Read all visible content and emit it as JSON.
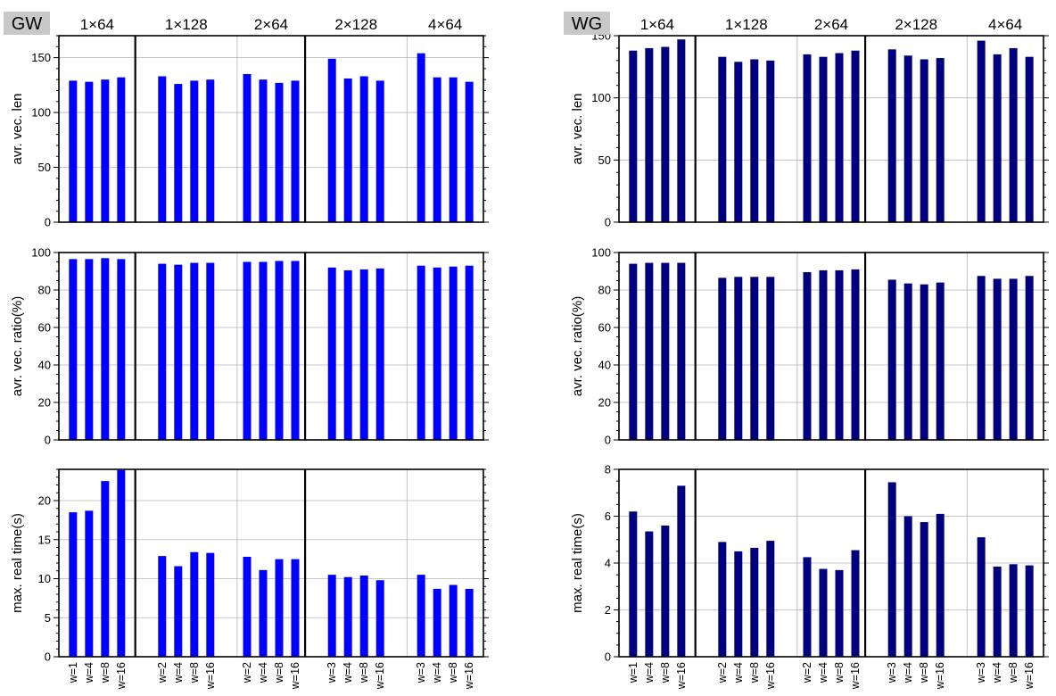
{
  "figure": {
    "config_labels": [
      "1×64",
      "1×128",
      "2×64",
      "2×128",
      "4×64"
    ],
    "worker_labels": [
      [
        "w=1",
        "w=4",
        "w=8",
        "w=16"
      ],
      [
        "w=2",
        "w=4",
        "w=8",
        "w=16"
      ],
      [
        "w=2",
        "w=4",
        "w=8",
        "w=16"
      ],
      [
        "w=3",
        "w=4",
        "w=8",
        "w=16"
      ],
      [
        "w=3",
        "w=4",
        "w=8",
        "w=16"
      ]
    ]
  },
  "chart_data": [
    {
      "type": "bar",
      "panel_tag": "GW",
      "color": "#0000ff",
      "ylabel": "avr. vec. len",
      "ylim": [
        0,
        170
      ],
      "yticks": [
        0,
        50,
        100,
        150
      ],
      "minor_step": 10,
      "groups": [
        [
          129,
          128,
          130,
          132
        ],
        [
          133,
          126,
          129,
          130
        ],
        [
          135,
          130,
          127,
          129
        ],
        [
          149,
          131,
          133,
          129
        ],
        [
          154,
          132,
          132,
          128
        ]
      ]
    },
    {
      "type": "bar",
      "panel_tag": "",
      "color": "#0000ff",
      "ylabel": "avr. vec. ratio(%)",
      "ylim": [
        0,
        100
      ],
      "yticks": [
        0,
        20,
        40,
        60,
        80,
        100
      ],
      "minor_step": 5,
      "groups": [
        [
          96.5,
          96.5,
          97,
          96.5
        ],
        [
          94,
          93.5,
          94.5,
          94.5
        ],
        [
          95,
          95,
          95.5,
          95.5
        ],
        [
          92,
          90.5,
          91,
          91.5
        ],
        [
          93,
          92,
          92.5,
          93
        ]
      ]
    },
    {
      "type": "bar",
      "panel_tag": "",
      "color": "#0000ff",
      "ylabel": "max. real time(s)",
      "ylim": [
        0,
        24
      ],
      "yticks": [
        0,
        5,
        10,
        15,
        20
      ],
      "minor_step": 1,
      "groups": [
        [
          18.5,
          18.7,
          22.5,
          23.9
        ],
        [
          12.9,
          11.6,
          13.4,
          13.3
        ],
        [
          12.8,
          11.1,
          12.5,
          12.5
        ],
        [
          10.5,
          10.2,
          10.4,
          9.8
        ],
        [
          10.5,
          8.7,
          9.2,
          8.7
        ]
      ]
    },
    {
      "type": "bar",
      "panel_tag": "WG",
      "color": "#00007f",
      "ylabel": "avr. vec. len",
      "ylim": [
        0,
        150
      ],
      "yticks": [
        0,
        50,
        100,
        150
      ],
      "minor_step": 10,
      "groups": [
        [
          138,
          140,
          141,
          147
        ],
        [
          133,
          129,
          131,
          130
        ],
        [
          135,
          133,
          136,
          138
        ],
        [
          139,
          134,
          131,
          132
        ],
        [
          146,
          135,
          140,
          133
        ]
      ]
    },
    {
      "type": "bar",
      "panel_tag": "",
      "color": "#00007f",
      "ylabel": "avr. vec. ratio(%)",
      "ylim": [
        0,
        100
      ],
      "yticks": [
        0,
        20,
        40,
        60,
        80,
        100
      ],
      "minor_step": 5,
      "groups": [
        [
          94,
          94.5,
          94.5,
          94.5
        ],
        [
          86.5,
          87,
          87,
          87
        ],
        [
          89.5,
          90.5,
          90.5,
          91
        ],
        [
          85.5,
          83.5,
          83,
          84
        ],
        [
          87.5,
          86,
          86,
          87.5
        ]
      ]
    },
    {
      "type": "bar",
      "panel_tag": "",
      "color": "#00007f",
      "ylabel": "max. real time(s)",
      "ylim": [
        0,
        8
      ],
      "yticks": [
        0,
        2,
        4,
        6,
        8
      ],
      "minor_step": 0.5,
      "groups": [
        [
          6.2,
          5.35,
          5.6,
          7.3
        ],
        [
          4.9,
          4.5,
          4.65,
          4.95
        ],
        [
          4.25,
          3.75,
          3.7,
          4.55
        ],
        [
          7.45,
          6.0,
          5.75,
          6.1
        ],
        [
          5.1,
          3.85,
          3.95,
          3.9
        ]
      ]
    }
  ]
}
